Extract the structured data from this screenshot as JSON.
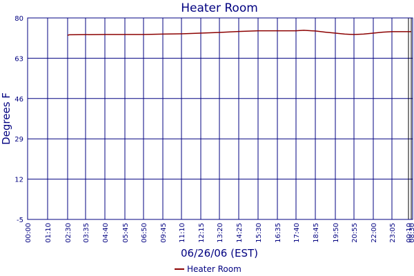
{
  "chart_data": {
    "type": "line",
    "title": "Heater Room",
    "xlabel": "06/26/06 (EST)",
    "ylabel": "Degrees F",
    "ylim": [
      -5,
      80
    ],
    "y_ticks": [
      "80",
      "63",
      "46",
      "29",
      "12",
      "-5"
    ],
    "x_ticks": [
      "00:00",
      "01:10",
      "02:30",
      "03:35",
      "04:40",
      "05:45",
      "06:50",
      "09:45",
      "11:10",
      "12:15",
      "13:20",
      "14:25",
      "15:30",
      "16:35",
      "17:40",
      "18:45",
      "19:50",
      "20:55",
      "22:00",
      "23:05",
      "00:10",
      "08:30"
    ],
    "grid": true,
    "legend_position": "bottom-center",
    "series": [
      {
        "name": "Heater Room",
        "color": "#8b0000",
        "x_index": [
          2,
          2.1,
          4,
          6,
          7,
          8,
          9,
          10,
          11,
          12,
          13,
          14,
          14.4,
          14.8,
          15,
          15.5,
          16,
          16.5,
          17,
          17.5,
          18,
          18.5,
          19,
          20,
          20.9
        ],
        "values": [
          72.7,
          72.9,
          73.0,
          73.0,
          73.2,
          73.3,
          73.6,
          73.9,
          74.3,
          74.6,
          74.6,
          74.6,
          74.8,
          74.6,
          74.5,
          74.0,
          73.6,
          73.2,
          73.0,
          73.2,
          73.6,
          74.0,
          74.2,
          74.2,
          74.2
        ]
      }
    ]
  }
}
